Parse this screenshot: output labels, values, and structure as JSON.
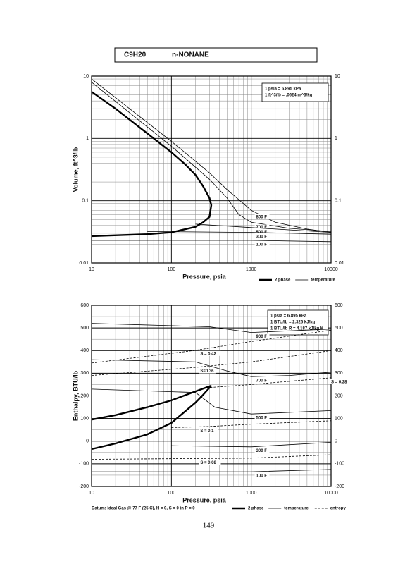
{
  "header": {
    "formula": "C9H20",
    "name": "n-NONANE"
  },
  "chart_data": [
    {
      "type": "line",
      "xlabel": "Pressure, psia",
      "ylabel": "Volume, ft^3/lb",
      "xlog": true,
      "ylog": true,
      "xlim": [
        10,
        10000
      ],
      "ylim": [
        0.01,
        10
      ],
      "xticks": [
        10,
        100,
        1000,
        10000
      ],
      "yticks": [
        0.01,
        0.1,
        1,
        10
      ],
      "x_minor_ticks": [
        20,
        30,
        40,
        50,
        60,
        70,
        80,
        90,
        200,
        300,
        400,
        500,
        600,
        700,
        800,
        900,
        2000,
        3000,
        4000,
        5000,
        6000,
        7000,
        8000,
        9000
      ],
      "y_minor_ticks": [
        0.02,
        0.03,
        0.04,
        0.05,
        0.06,
        0.07,
        0.08,
        0.09,
        0.2,
        0.3,
        0.4,
        0.5,
        0.6,
        0.7,
        0.8,
        0.9,
        2,
        3,
        4,
        5,
        6,
        7,
        8,
        9
      ],
      "notes": [
        "1 psia = 6.895 kPa",
        "1 ft^3/lb = .0624 m^3/kg"
      ],
      "legend": [
        {
          "label": "2 phase",
          "width": 2.4,
          "dash": null
        },
        {
          "label": "temperature",
          "width": 0.8,
          "dash": null
        }
      ],
      "series": [
        {
          "name": null,
          "style": 0,
          "x": [
            10,
            20,
            50,
            100,
            150,
            200,
            250,
            300,
            316,
            300,
            250,
            200,
            100,
            50,
            10
          ],
          "y": [
            5.6,
            3,
            1.2,
            0.6,
            0.38,
            0.26,
            0.17,
            0.11,
            0.085,
            0.055,
            0.045,
            0.038,
            0.031,
            0.029,
            0.027
          ]
        },
        {
          "name": "800 F",
          "style": 1,
          "x": [
            10,
            100,
            300,
            500,
            1000,
            2000,
            5000,
            10000
          ],
          "y": [
            9,
            0.9,
            0.28,
            0.15,
            0.07,
            0.045,
            0.035,
            0.031
          ]
        },
        {
          "name": "700 F",
          "style": 1,
          "x": [
            10,
            100,
            300,
            500,
            700,
            1000,
            3000,
            10000
          ],
          "y": [
            8,
            0.75,
            0.22,
            0.11,
            0.06,
            0.045,
            0.036,
            0.032
          ]
        },
        {
          "name": "500 F",
          "style": 1,
          "x": [
            200,
            1000,
            10000
          ],
          "y": [
            0.042,
            0.037,
            0.031
          ]
        },
        {
          "name": "300 F",
          "style": 1,
          "x": [
            50,
            1000,
            10000
          ],
          "y": [
            0.032,
            0.031,
            0.029
          ]
        },
        {
          "name": "100 F",
          "style": 1,
          "x": [
            10,
            1000,
            10000
          ],
          "y": [
            0.023,
            0.023,
            0.022
          ]
        }
      ]
    },
    {
      "type": "line",
      "xlabel": "Pressure, psia",
      "ylabel": "Enthalpy, BTU/lb",
      "xlog": true,
      "ylog": false,
      "xlim": [
        10,
        10000
      ],
      "ylim": [
        -200,
        600
      ],
      "xticks": [
        10,
        100,
        1000,
        10000
      ],
      "yticks": [
        -200,
        -100,
        0,
        100,
        200,
        300,
        400,
        500,
        600
      ],
      "x_minor_ticks": [
        20,
        30,
        40,
        50,
        60,
        70,
        80,
        90,
        200,
        300,
        400,
        500,
        600,
        700,
        800,
        900,
        2000,
        3000,
        4000,
        5000,
        6000,
        7000,
        8000,
        9000
      ],
      "y_minor_ticks": [
        -150,
        -50,
        50,
        150,
        250,
        350,
        450,
        550
      ],
      "notes": [
        "1 psia = 6.895 kPa",
        "1 BTU/lb = 2.326 kJ/kg",
        "1 BTU/lb R = 4.187 kJ/kg K"
      ],
      "legend": [
        {
          "label": "2 phase",
          "width": 2.4,
          "dash": null
        },
        {
          "label": "temperature",
          "width": 0.8,
          "dash": null
        },
        {
          "label": "entropy",
          "width": 0.8,
          "dash": "3 2"
        }
      ],
      "series": [
        {
          "name": null,
          "style": 0,
          "x": [
            10,
            20,
            50,
            100,
            200,
            316,
            250,
            200,
            100,
            50,
            20,
            10
          ],
          "y": [
            95,
            115,
            150,
            180,
            220,
            245,
            205,
            170,
            80,
            30,
            -10,
            -35
          ]
        },
        {
          "name": "900 F",
          "style": 1,
          "x": [
            10,
            300,
            1000,
            10000
          ],
          "y": [
            520,
            505,
            480,
            495
          ]
        },
        {
          "name": "700 F",
          "style": 1,
          "x": [
            10,
            200,
            500,
            1000,
            3000,
            10000
          ],
          "y": [
            360,
            350,
            310,
            285,
            290,
            305
          ]
        },
        {
          "name": "500 F",
          "style": 1,
          "x": [
            10,
            200,
            350,
            1000,
            10000
          ],
          "y": [
            230,
            215,
            150,
            120,
            135
          ]
        },
        {
          "name": "300 F",
          "style": 1,
          "x": [
            100,
            1000,
            10000
          ],
          "y": [
            -20,
            -25,
            -5
          ]
        },
        {
          "name": "100 F",
          "style": 1,
          "x": [
            10,
            1000,
            10000
          ],
          "y": [
            -135,
            -135,
            -125
          ]
        },
        {
          "name": "S = 0.42",
          "style": 2,
          "x": [
            10,
            190,
            1000,
            10000
          ],
          "y": [
            345,
            400,
            440,
            490
          ]
        },
        {
          "name": "S=0.36",
          "style": 2,
          "x": [
            10,
            190,
            1000,
            10000
          ],
          "y": [
            290,
            325,
            350,
            400
          ]
        },
        {
          "name": "S = 0.28",
          "style": 2,
          "x": [
            250,
            1000,
            10000
          ],
          "y": [
            235,
            250,
            280
          ]
        },
        {
          "name": "S = 0.1",
          "style": 2,
          "x": [
            100,
            300,
            1000,
            10000
          ],
          "y": [
            60,
            65,
            75,
            90
          ]
        },
        {
          "name": "S = 0.08",
          "style": 2,
          "x": [
            10,
            1000,
            10000
          ],
          "y": [
            -80,
            -75,
            -60
          ]
        }
      ]
    }
  ],
  "footnote": "Datum: Ideal Gas @ 77 F (25 C), H = 0, S = 0 in P = 0",
  "page_number": "149"
}
